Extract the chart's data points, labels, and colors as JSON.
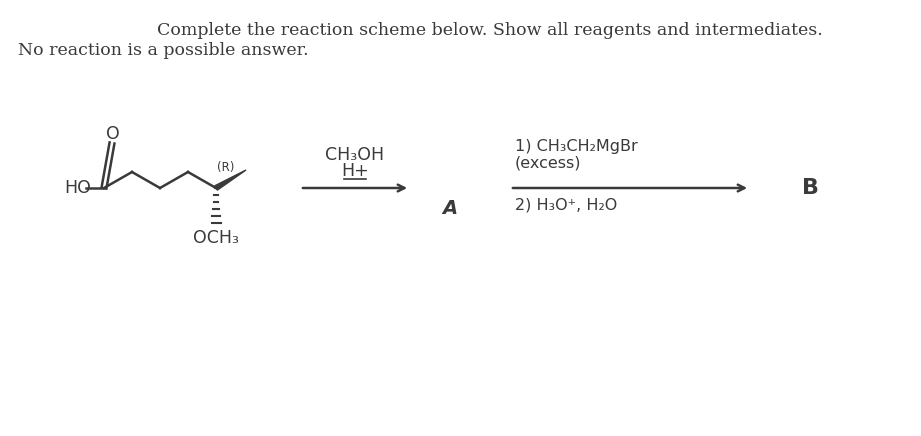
{
  "title_line1": "Complete the reaction scheme below. Show all reagents and intermediates.",
  "title_line2": "No reaction is a possible answer.",
  "reagent1_line1": "CH₃OH",
  "reagent1_line2": "H+",
  "reagent2_line1": "1) CH₃CH₂MgBr",
  "reagent2_line2": "(excess)",
  "reagent2_line3": "2) H₃O⁺, H₂O",
  "label_A": "A",
  "label_B": "B",
  "bg_color": "#ffffff",
  "text_color": "#3a3a3a",
  "arrow_color": "#3a3a3a",
  "title_fontsize": 12.5,
  "chem_fontsize": 11.5,
  "label_fontsize": 14
}
